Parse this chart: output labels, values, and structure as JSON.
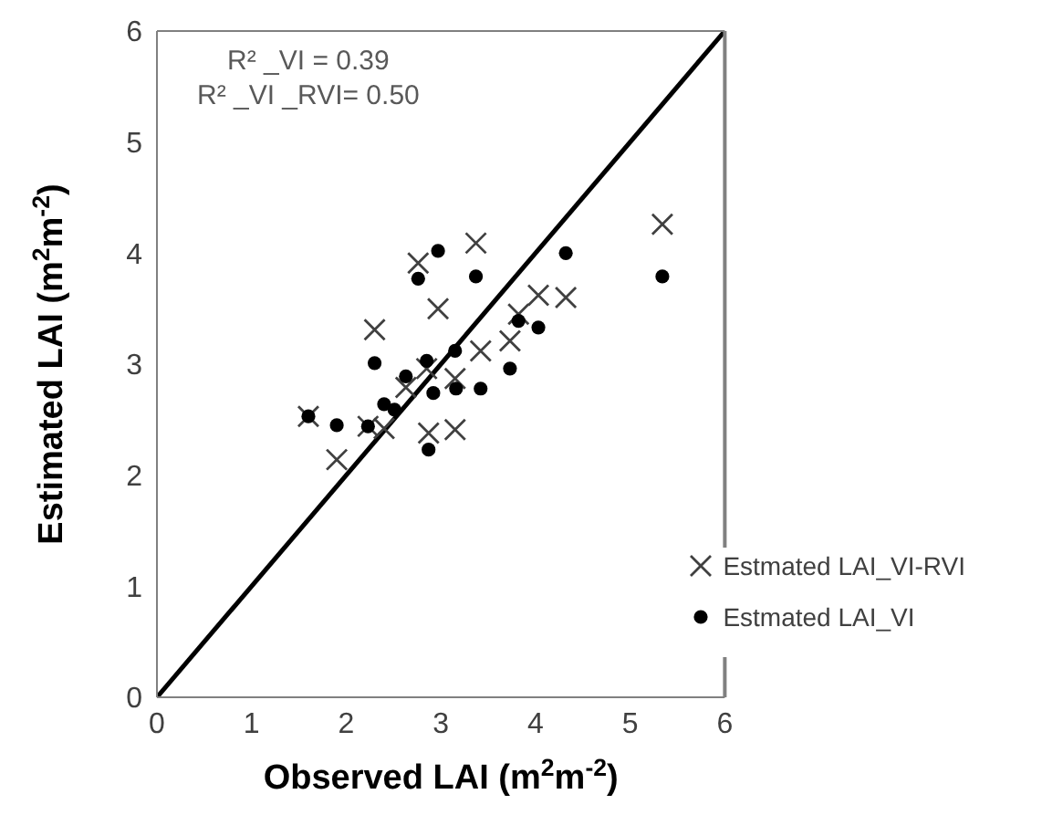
{
  "chart_data": {
    "type": "scatter",
    "xlabel": "Observed LAI (m$^{2}$m$^{-2}$)",
    "ylabel": "Estimated LAI (m$^{2}$m$^{-2}$)",
    "annotations": [
      "R² _VI = 0.39",
      "R² _VI _RVI= 0.50"
    ],
    "xlim": [
      0,
      6
    ],
    "xticks": [
      0,
      1,
      2,
      3,
      4,
      5,
      6
    ],
    "ylim": [
      0,
      6
    ],
    "yticks": [
      0,
      1,
      2,
      3,
      4,
      5,
      6
    ],
    "legend": "bottom right",
    "series": [
      {
        "name": "Estmated LAI_VI-RVI",
        "color": "#404040",
        "marker": "cross",
        "x": [
          1.6,
          1.9,
          2.23,
          2.4,
          2.3,
          2.63,
          2.76,
          2.85,
          2.87,
          2.97,
          3.15,
          3.15,
          3.37,
          3.42,
          3.73,
          3.82,
          4.03,
          4.32,
          5.34
        ],
        "values": [
          2.53,
          2.14,
          2.44,
          2.42,
          3.31,
          2.79,
          3.91,
          2.96,
          2.38,
          3.5,
          2.87,
          2.41,
          4.09,
          3.12,
          3.21,
          3.45,
          3.62,
          3.6,
          4.26
        ]
      },
      {
        "name": "Estmated LAI_VI",
        "color": "#000000",
        "marker": "circle",
        "x": [
          1.6,
          1.9,
          2.23,
          2.3,
          2.4,
          2.51,
          2.63,
          2.76,
          2.85,
          2.87,
          2.92,
          2.97,
          3.15,
          3.16,
          3.37,
          3.42,
          3.73,
          3.82,
          4.03,
          4.32,
          5.34
        ],
        "values": [
          2.53,
          2.45,
          2.44,
          3.01,
          2.64,
          2.59,
          2.89,
          3.77,
          3.03,
          2.23,
          2.74,
          4.02,
          3.12,
          2.78,
          3.79,
          2.78,
          2.96,
          3.39,
          3.33,
          4.0,
          3.79
        ]
      },
      {
        "type": "line",
        "color": "#000000",
        "marker": "none",
        "line_style": "solid",
        "x": [
          0,
          6
        ],
        "values": [
          0,
          6
        ]
      }
    ]
  }
}
